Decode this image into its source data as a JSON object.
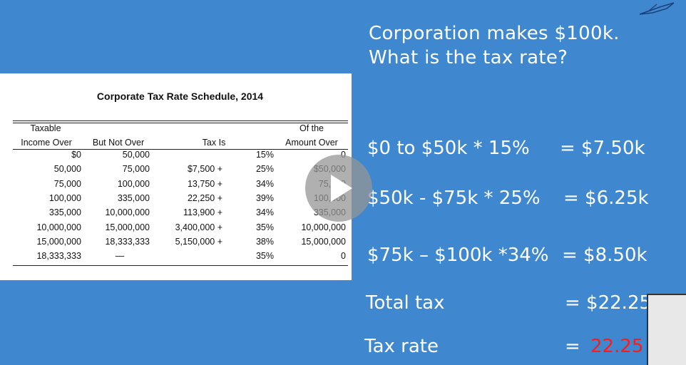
{
  "slide": {
    "question_line1": "Corporation makes $100k.",
    "question_line2": "What is the tax rate?"
  },
  "table": {
    "title": "Corporate Tax Rate Schedule, 2014",
    "headers": {
      "taxable_top": "Taxable",
      "income_over": "Income Over",
      "but_not_over": "But Not Over",
      "tax_is": "Tax Is",
      "of_the": "Of the",
      "amount_over": "Amount Over"
    },
    "rows": [
      {
        "income_over": "$0",
        "but_not_over": "50,000",
        "tax_is": "",
        "rate": "15%",
        "amount_over": "0"
      },
      {
        "income_over": "50,000",
        "but_not_over": "75,000",
        "tax_is": "$7,500 +",
        "rate": "25%",
        "amount_over": "$50,000"
      },
      {
        "income_over": "75,000",
        "but_not_over": "100,000",
        "tax_is": "13,750 +",
        "rate": "34%",
        "amount_over": "75,000"
      },
      {
        "income_over": "100,000",
        "but_not_over": "335,000",
        "tax_is": "22,250 +",
        "rate": "39%",
        "amount_over": "100,000"
      },
      {
        "income_over": "335,000",
        "but_not_over": "10,000,000",
        "tax_is": "113,900 +",
        "rate": "34%",
        "amount_over": "335,000"
      },
      {
        "income_over": "10,000,000",
        "but_not_over": "15,000,000",
        "tax_is": "3,400,000 +",
        "rate": "35%",
        "amount_over": "10,000,000"
      },
      {
        "income_over": "15,000,000",
        "but_not_over": "18,333,333",
        "tax_is": "5,150,000 +",
        "rate": "38%",
        "amount_over": "15,000,000"
      },
      {
        "income_over": "18,333,333",
        "but_not_over": "—",
        "tax_is": "",
        "rate": "35%",
        "amount_over": "0"
      }
    ]
  },
  "calculations": [
    {
      "label": "$0 to $50k * 15%",
      "value": "= $7.50k"
    },
    {
      "label": "$50k - $75k  * 25%",
      "value": "= $6.25k"
    },
    {
      "label": "$75k – $100k *34%",
      "value": "= $8.50k"
    }
  ],
  "total": {
    "label": "Total tax",
    "value": "= $22.25"
  },
  "rate": {
    "label": "Tax rate",
    "eq": "=",
    "value": "22.25"
  },
  "colors": {
    "background": "#3f88cf",
    "highlight": "#ff1a1a"
  },
  "icons": {
    "play": "play-icon",
    "logo": "jet-logo-icon"
  }
}
